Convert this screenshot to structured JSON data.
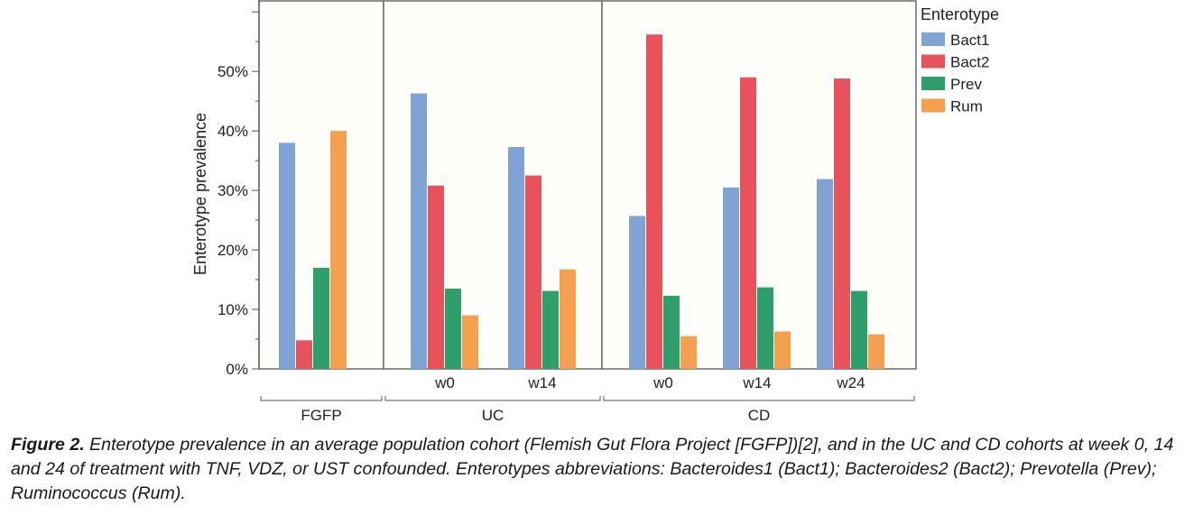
{
  "chart_data": {
    "type": "bar",
    "ylabel": "Enterotype prevalence",
    "ylim": [
      0,
      62
    ],
    "yticks": [
      0,
      10,
      20,
      30,
      40,
      50
    ],
    "ytick_labels": [
      "0%",
      "10%",
      "20%",
      "30%",
      "40%",
      "50%"
    ],
    "legend": {
      "title": "Enterotype",
      "placement": "top-right"
    },
    "series": [
      {
        "name": "Bact1",
        "color": "#7fa3d4"
      },
      {
        "name": "Bact2",
        "color": "#e8525a"
      },
      {
        "name": "Prev",
        "color": "#2e9e6b"
      },
      {
        "name": "Rum",
        "color": "#f5a04f"
      }
    ],
    "groups": [
      {
        "label": "FGFP",
        "timepoints": [
          {
            "label": "",
            "values": [
              38.0,
              4.8,
              17.0,
              40.0
            ]
          }
        ]
      },
      {
        "label": "UC",
        "timepoints": [
          {
            "label": "w0",
            "values": [
              46.3,
              30.8,
              13.5,
              9.0
            ]
          },
          {
            "label": "w14",
            "values": [
              37.3,
              32.5,
              13.1,
              16.7
            ]
          }
        ]
      },
      {
        "label": "CD",
        "timepoints": [
          {
            "label": "w0",
            "values": [
              25.7,
              56.2,
              12.3,
              5.5
            ]
          },
          {
            "label": "w14",
            "values": [
              30.5,
              49.0,
              13.7,
              6.3
            ]
          },
          {
            "label": "w24",
            "values": [
              31.9,
              48.8,
              13.1,
              5.8
            ]
          }
        ]
      }
    ]
  },
  "caption": {
    "label": "Figure 2.",
    "text": " Enterotype prevalence in an average population cohort (Flemish Gut Flora Project [FGFP])[2], and in the UC and CD cohorts at week 0, 14 and 24 of treatment with TNF, VDZ, or UST confounded. Enterotypes abbreviations: Bacteroides1 (Bact1); Bacteroides2 (Bact2); Prevotella (Prev); Ruminococcus (Rum)."
  }
}
